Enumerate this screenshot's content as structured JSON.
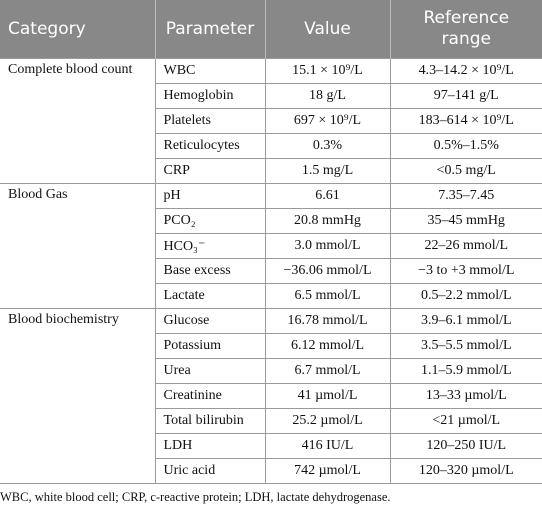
{
  "table": {
    "header": [
      "Category",
      "Parameter",
      "Value",
      "Reference range"
    ],
    "groups": [
      {
        "category": "Complete blood count",
        "rows": [
          [
            "WBC",
            "15.1 × 10⁹/L",
            "4.3–14.2 × 10⁹/L"
          ],
          [
            "Hemoglobin",
            "18 g/L",
            "97–141 g/L"
          ],
          [
            "Platelets",
            "697 × 10⁹/L",
            "183–614 × 10⁹/L"
          ],
          [
            "Reticulocytes",
            "0.3%",
            "0.5%–1.5%"
          ],
          [
            "CRP",
            "1.5 mg/L",
            "<0.5 mg/L"
          ]
        ]
      },
      {
        "category": "Blood Gas",
        "rows": [
          [
            "pH",
            "6.61",
            "7.35–7.45"
          ],
          [
            "PCO₂",
            "20.8 mmHg",
            "35–45 mmHg"
          ],
          [
            "HCO₃⁻",
            "3.0 mmol/L",
            "22–26 mmol/L"
          ],
          [
            "Base excess",
            "−36.06 mmol/L",
            "−3 to +3 mmol/L"
          ],
          [
            "Lactate",
            "6.5 mmol/L",
            "0.5–2.2 mmol/L"
          ]
        ]
      },
      {
        "category": "Blood biochemistry",
        "rows": [
          [
            "Glucose",
            "16.78 mmol/L",
            "3.9–6.1 mmol/L"
          ],
          [
            "Potassium",
            "6.12 mmol/L",
            "3.5–5.5 mmol/L"
          ],
          [
            "Urea",
            "6.7 mmol/L",
            "1.1–5.9 mmol/L"
          ],
          [
            "Creatinine",
            "41 µmol/L",
            "13–33 µmol/L"
          ],
          [
            "Total bilirubin",
            "25.2 µmol/L",
            "<21 µmol/L"
          ],
          [
            "LDH",
            "416 IU/L",
            "120–250 IU/L"
          ],
          [
            "Uric acid",
            "742 µmol/L",
            "120–320 µmol/L"
          ]
        ]
      }
    ]
  },
  "footnote": "WBC, white blood cell; CRP, c-reactive protein; LDH, lactate dehydrogenase."
}
